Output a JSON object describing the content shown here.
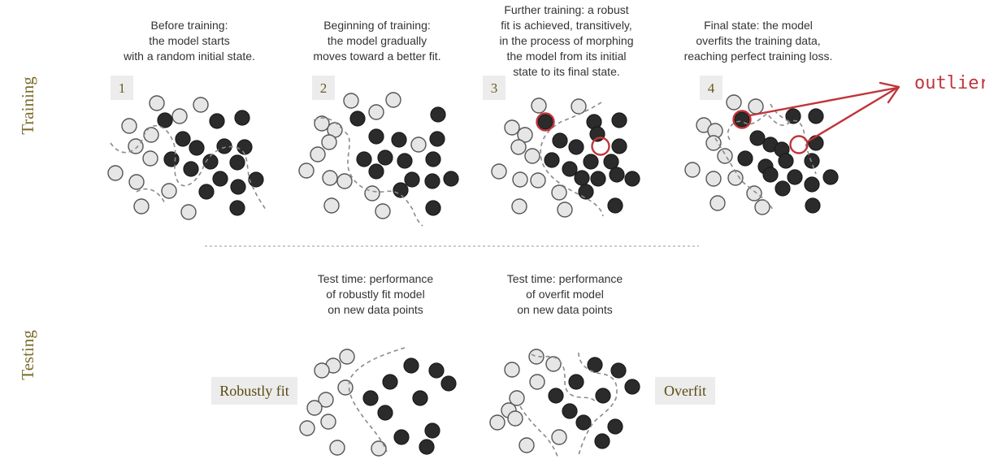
{
  "labels": {
    "training": "Training",
    "testing": "Testing",
    "robust_tag": "Robustly fit",
    "overfit_tag": "Overfit",
    "outlier": "outlier"
  },
  "colors": {
    "label_olive": "#7a6a2a",
    "badge_bg": "#ececec",
    "dark_point": "#2b2b2b",
    "light_point": "#e6e6e6",
    "highlight_red": "#c0353a"
  },
  "panels": [
    {
      "badge": "1",
      "caption": [
        "Before training:",
        "the model starts",
        "with a random initial state."
      ]
    },
    {
      "badge": "2",
      "caption": [
        "Beginning of training:",
        "the model gradually",
        "moves toward a better fit."
      ]
    },
    {
      "badge": "3",
      "caption": [
        "Further training: a robust",
        "fit is achieved, transitively,",
        "in the process of morphing",
        "the model from its initial",
        "state to its final state."
      ]
    },
    {
      "badge": "4",
      "caption": [
        "Final state: the model",
        "overfits the training data,",
        "reaching perfect training loss."
      ]
    }
  ],
  "test_panels": [
    {
      "caption": [
        "Test time: performance",
        "of robustly fit model",
        "on new data points"
      ]
    },
    {
      "caption": [
        "Test time: performance",
        "of overfit model",
        "on new data points"
      ]
    }
  ],
  "icons": {
    "arrow": "red-arrow-icon"
  }
}
